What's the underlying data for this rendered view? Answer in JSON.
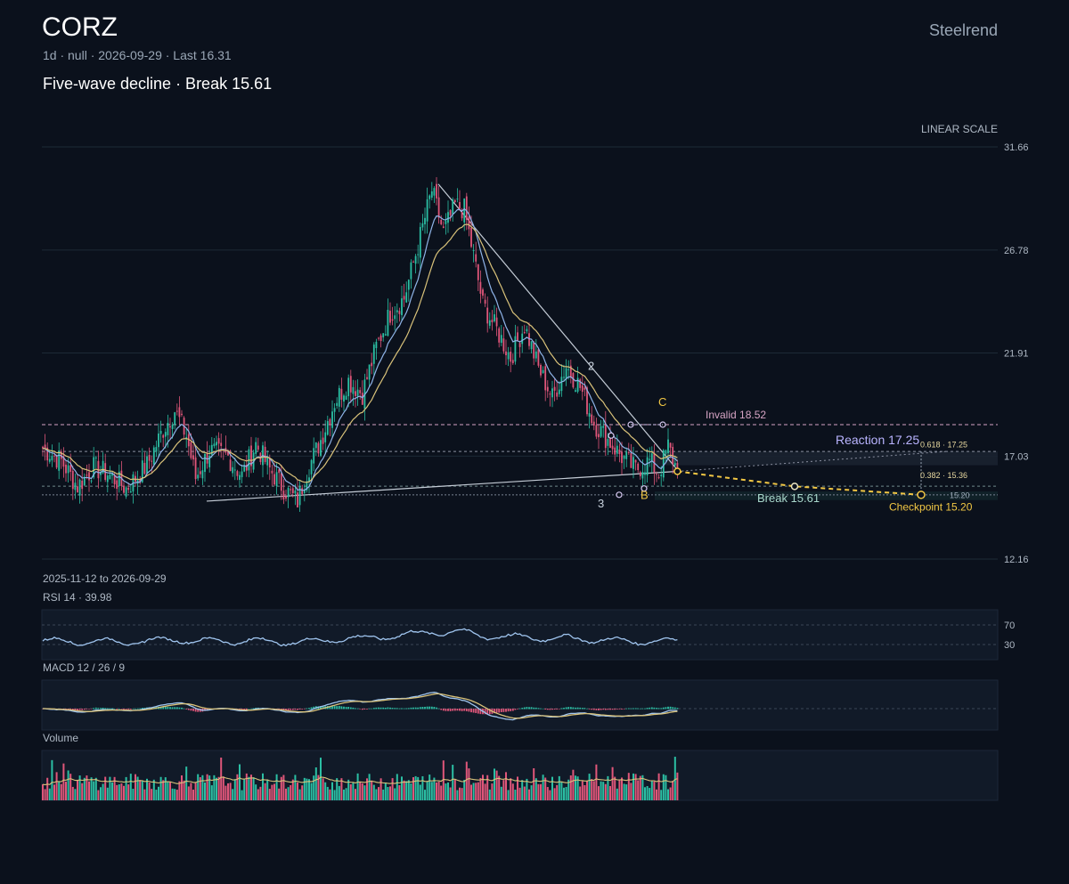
{
  "header": {
    "ticker": "CORZ",
    "meta": "1d · null · 2026-09-29 · Last 16.31",
    "subtitle": "Five-wave decline · Break 15.61",
    "brand": "Steelrend",
    "scale_label": "LINEAR SCALE"
  },
  "colors": {
    "bg": "#0b111c",
    "up": "#2bbfa4",
    "down": "#e0567a",
    "ma_fast": "#8fb4e8",
    "ma_slow": "#d9c27a",
    "accent": "#f2c744",
    "reaction": "#b9b4ff",
    "invalid": "#d6a4c4"
  },
  "chart_data": {
    "type": "candlestick",
    "ylim": [
      12.16,
      31.66
    ],
    "y_ticks": [
      "31.66",
      "26.78",
      "21.91",
      "17.03",
      "12.16"
    ],
    "date_range": "2025-11-12 to 2026-09-29",
    "last": 16.31,
    "annotations": {
      "wave_2": "2",
      "wave_3": "3",
      "wave_B": "B",
      "wave_C": "C",
      "invalid": "Invalid 18.52",
      "reaction": "Reaction 17.25",
      "fib_618": "0.618 · 17.25",
      "fib_382": "0.382 · 15.36",
      "fib_right": "15.20",
      "break": "Break 15.61",
      "checkpoint": "Checkpoint 15.20"
    },
    "levels": {
      "invalid": 18.52,
      "reaction": 17.25,
      "fib_382": 15.36,
      "break": 15.61,
      "checkpoint": 15.2
    },
    "anchors": [
      [
        0,
        17.4
      ],
      [
        8,
        16.8
      ],
      [
        15,
        15.6
      ],
      [
        22,
        16.5
      ],
      [
        28,
        16.2
      ],
      [
        36,
        15.5
      ],
      [
        45,
        16.6
      ],
      [
        52,
        18.3
      ],
      [
        57,
        19.2
      ],
      [
        62,
        18.0
      ],
      [
        66,
        16.0
      ],
      [
        72,
        17.3
      ],
      [
        80,
        17.0
      ],
      [
        86,
        16.1
      ],
      [
        92,
        17.6
      ],
      [
        98,
        16.4
      ],
      [
        104,
        15.5
      ],
      [
        110,
        14.9
      ],
      [
        114,
        16.3
      ],
      [
        120,
        17.8
      ],
      [
        126,
        19.6
      ],
      [
        132,
        20.6
      ],
      [
        138,
        20.0
      ],
      [
        144,
        22.2
      ],
      [
        150,
        23.8
      ],
      [
        156,
        24.5
      ],
      [
        162,
        27.0
      ],
      [
        168,
        29.6
      ],
      [
        173,
        27.6
      ],
      [
        178,
        28.9
      ],
      [
        182,
        28.7
      ],
      [
        186,
        26.5
      ],
      [
        190,
        24.2
      ],
      [
        196,
        23.0
      ],
      [
        202,
        21.7
      ],
      [
        208,
        23.2
      ],
      [
        214,
        21.2
      ],
      [
        220,
        19.8
      ],
      [
        226,
        21.3
      ],
      [
        232,
        20.3
      ],
      [
        238,
        18.6
      ],
      [
        244,
        17.8
      ],
      [
        250,
        17.0
      ],
      [
        256,
        16.4
      ],
      [
        262,
        16.8
      ],
      [
        266,
        16.2
      ],
      [
        270,
        17.5
      ],
      [
        274,
        16.31
      ]
    ],
    "rsi": {
      "label": "RSI 14 · 39.98",
      "value": 39.98,
      "levels": [
        "70",
        "30"
      ]
    },
    "macd": {
      "label": "MACD 12 / 26 / 9"
    },
    "volume": {
      "label": "Volume"
    }
  }
}
